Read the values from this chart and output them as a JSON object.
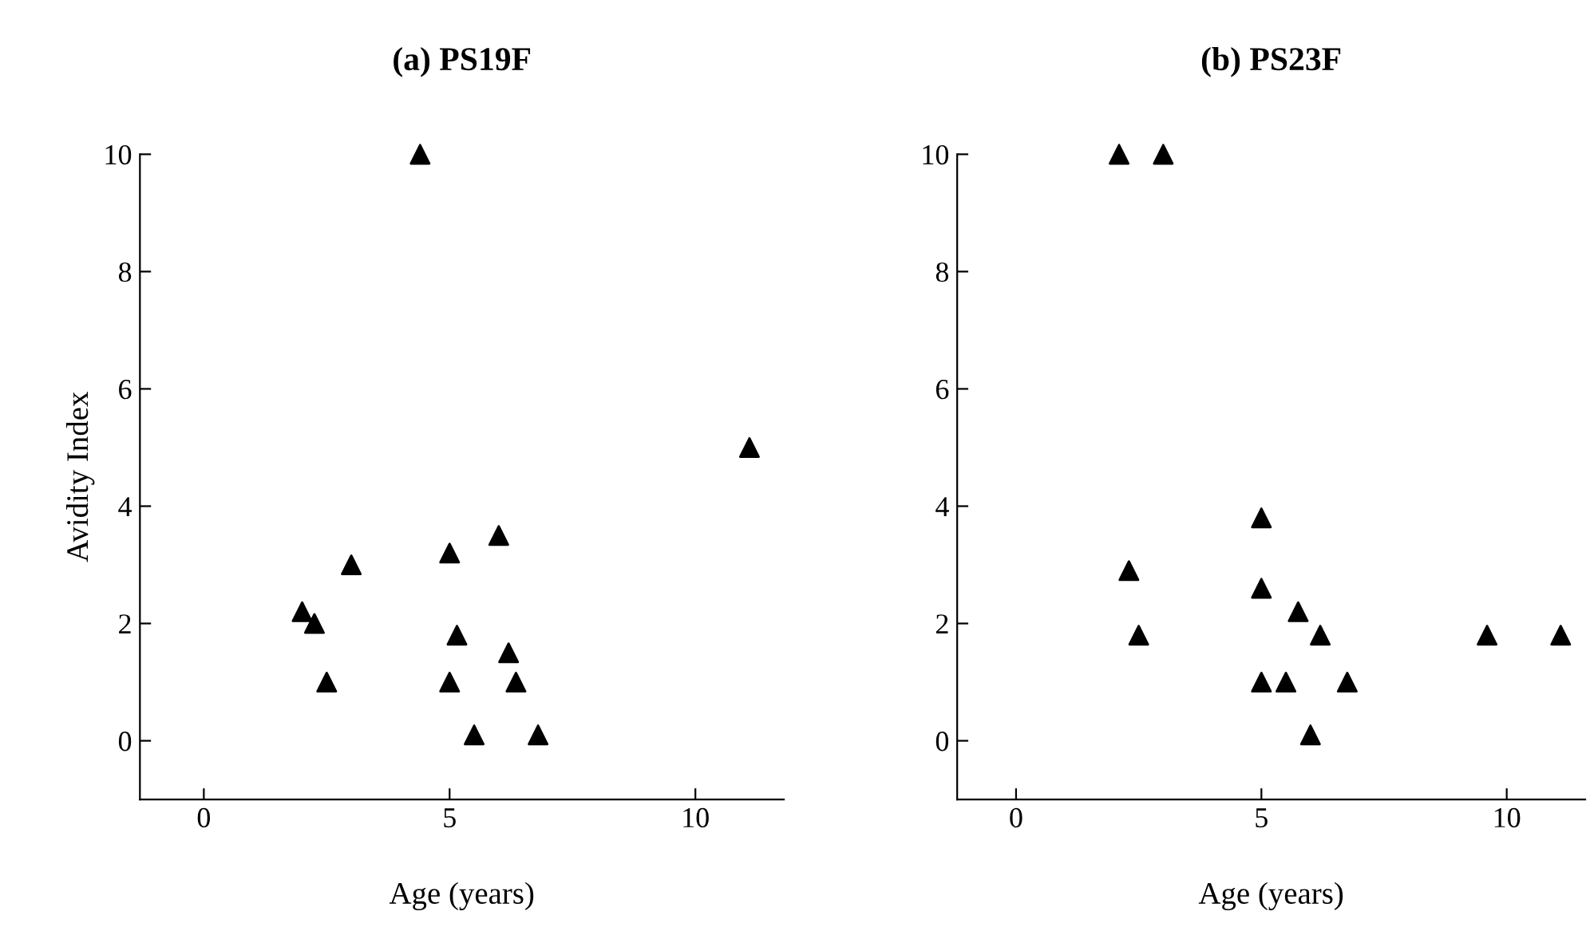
{
  "chart_data": [
    {
      "type": "scatter",
      "title": "(a) PS19F",
      "xlabel": "Age (years)",
      "ylabel": "Avidity Index",
      "xlim": [
        -1.3,
        11.8
      ],
      "ylim": [
        -1,
        10
      ],
      "xticks": [
        0,
        5,
        10
      ],
      "yticks": [
        0,
        2,
        4,
        6,
        8,
        10
      ],
      "marker": "triangle",
      "grid": false,
      "series": [
        {
          "color": "#000000",
          "x": [
            2.0,
            2.25,
            2.5,
            3.0,
            4.4,
            5.0,
            5.0,
            5.15,
            5.5,
            6.0,
            6.2,
            6.35,
            6.8,
            11.1
          ],
          "values": [
            2.2,
            2.0,
            1.0,
            3.0,
            10,
            3.2,
            1.0,
            1.8,
            0.1,
            3.5,
            1.5,
            1.0,
            0.1,
            5.0
          ]
        }
      ]
    },
    {
      "type": "scatter",
      "title": "(b) PS23F",
      "xlabel": "Age (years)",
      "xlim": [
        -1.2,
        11.6
      ],
      "ylim": [
        -1,
        10
      ],
      "xticks": [
        0,
        5,
        10
      ],
      "yticks": [
        0,
        2,
        4,
        6,
        8,
        10
      ],
      "marker": "triangle",
      "grid": false,
      "series": [
        {
          "color": "#000000",
          "x": [
            2.1,
            3.0,
            2.3,
            2.5,
            5.0,
            5.0,
            5.0,
            5.5,
            5.75,
            6.0,
            6.2,
            6.75,
            9.6,
            11.1
          ],
          "values": [
            10,
            10,
            2.9,
            1.8,
            3.8,
            2.6,
            1.0,
            1.0,
            2.2,
            0.1,
            1.8,
            1.0,
            1.8,
            1.8
          ]
        }
      ]
    }
  ]
}
